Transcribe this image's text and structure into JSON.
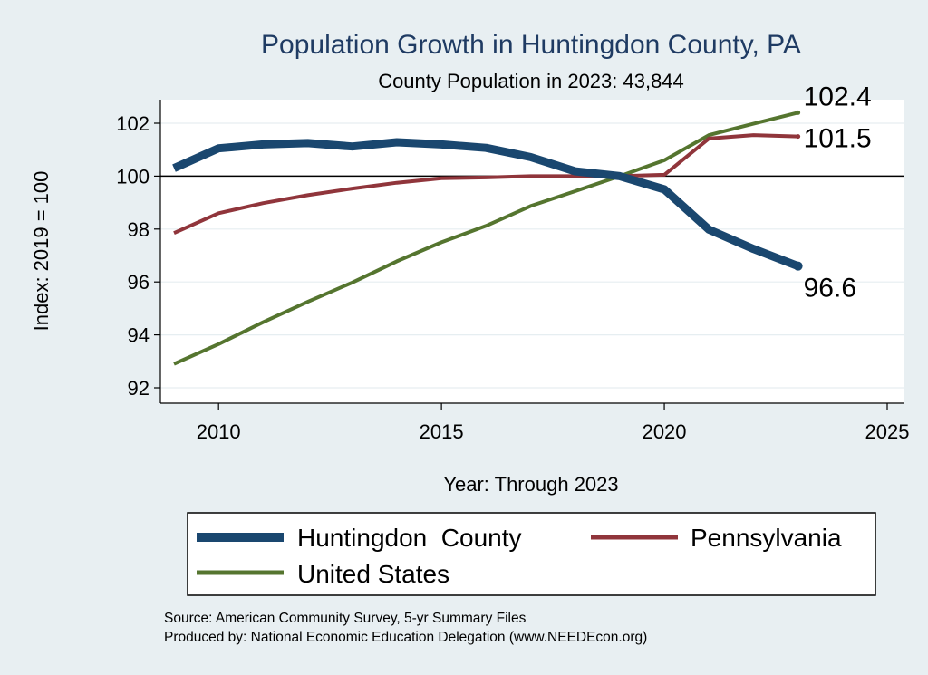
{
  "chart_data": {
    "type": "line",
    "title": "Population Growth in Huntingdon County, PA",
    "subtitle": "County Population in 2023: 43,844",
    "xlabel": "Year: Through 2023",
    "ylabel": "Index: 2019 = 100",
    "xlim": [
      2008.6,
      2025.4
    ],
    "ylim": [
      91.5,
      103
    ],
    "x_ticks": [
      2010,
      2015,
      2020,
      2025
    ],
    "y_ticks": [
      92,
      94,
      96,
      98,
      100,
      102
    ],
    "reference_line": 100,
    "grid": true,
    "legend_position": "bottom",
    "series": [
      {
        "name": "Huntingdon  County",
        "color": "#1a476f",
        "width": 9,
        "x": [
          2009,
          2010,
          2011,
          2012,
          2013,
          2014,
          2015,
          2016,
          2017,
          2018,
          2019,
          2020,
          2021,
          2022,
          2023
        ],
        "values": [
          100.3,
          101.05,
          101.2,
          101.25,
          101.12,
          101.28,
          101.2,
          101.07,
          100.72,
          100.18,
          100.0,
          99.5,
          97.98,
          97.25,
          96.6
        ],
        "end_label": "96.6"
      },
      {
        "name": "Pennsylvania",
        "color": "#90353b",
        "width": 4,
        "x": [
          2009,
          2010,
          2011,
          2012,
          2013,
          2014,
          2015,
          2016,
          2017,
          2018,
          2019,
          2020,
          2021,
          2022,
          2023
        ],
        "values": [
          97.85,
          98.6,
          98.98,
          99.28,
          99.53,
          99.75,
          99.92,
          99.95,
          100.0,
          100.0,
          100.0,
          100.05,
          101.42,
          101.55,
          101.5
        ],
        "end_label": "101.5"
      },
      {
        "name": "United States",
        "color": "#55752f",
        "width": 4,
        "x": [
          2009,
          2010,
          2011,
          2012,
          2013,
          2014,
          2015,
          2016,
          2017,
          2018,
          2019,
          2020,
          2021,
          2022,
          2023
        ],
        "values": [
          92.9,
          93.65,
          94.48,
          95.25,
          95.98,
          96.78,
          97.5,
          98.12,
          98.87,
          99.43,
          100.0,
          100.6,
          101.55,
          101.98,
          102.4
        ],
        "end_label": "102.4"
      }
    ]
  },
  "footer": {
    "source": "Source: American Community Survey, 5-yr Summary Files",
    "produced_by": "Produced by: National Economic Education Delegation (www.NEEDEcon.org)"
  }
}
